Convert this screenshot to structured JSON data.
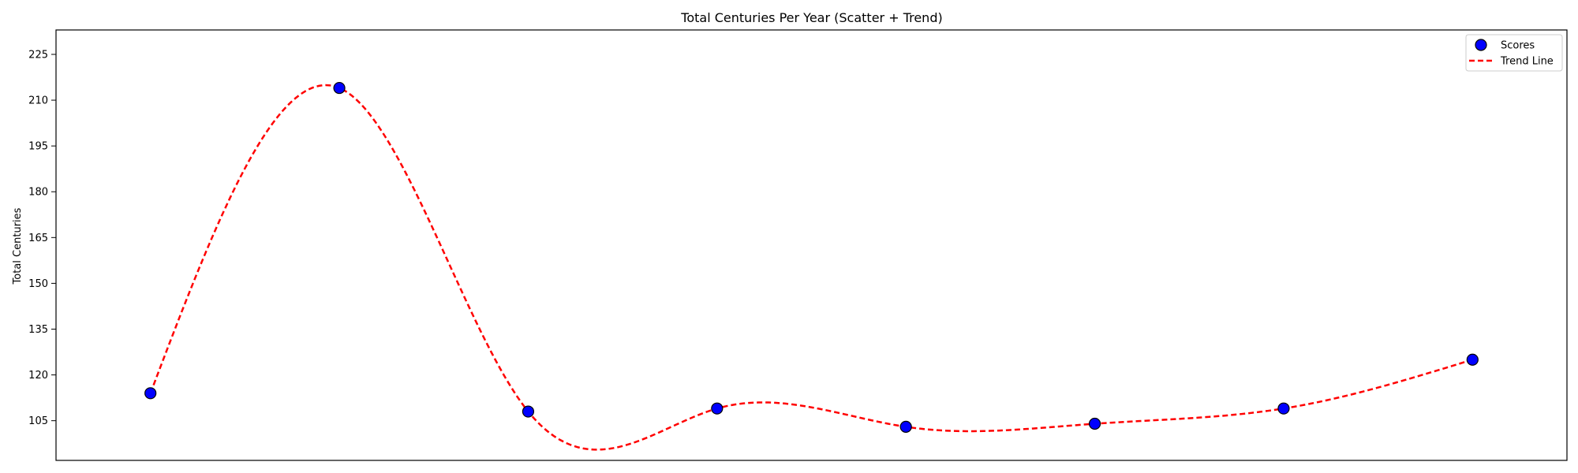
{
  "chart_data": {
    "type": "scatter",
    "title": "Total Centuries Per Year (Scatter + Trend)",
    "xlabel": "",
    "ylabel": "Total Centuries",
    "x": [
      0,
      1,
      2,
      3,
      4,
      5,
      6,
      7
    ],
    "xlim": [
      -0.5,
      7.5
    ],
    "yticks": [
      105,
      120,
      135,
      150,
      165,
      180,
      195,
      210,
      225
    ],
    "ylim": [
      92,
      233
    ],
    "x_tick_labels_shown": false,
    "grid": false,
    "legend_position": "top-right",
    "series": [
      {
        "name": "Scores",
        "kind": "scatter",
        "values": [
          114,
          214,
          108,
          109,
          103,
          104,
          109,
          125
        ],
        "color": "#0000ff",
        "edgecolor": "#000000"
      },
      {
        "name": "Trend Line",
        "kind": "line",
        "style": "dashed",
        "smooth": true,
        "values": [
          114,
          214,
          108,
          109,
          103,
          104,
          109,
          125
        ],
        "color": "#ff0000"
      }
    ]
  }
}
